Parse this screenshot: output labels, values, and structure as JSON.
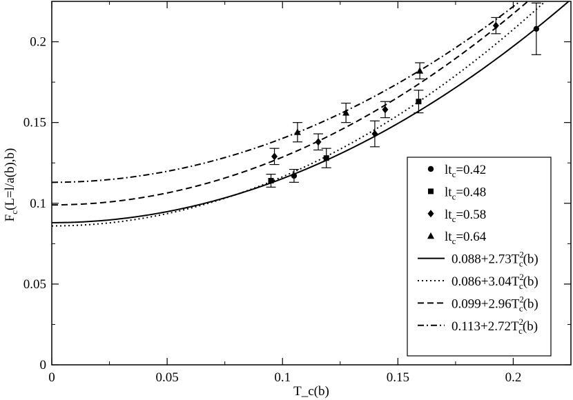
{
  "chart_data": {
    "type": "scatter",
    "xlabel": "T_c(b)",
    "ylabel": {
      "main": "F",
      "sub": "c",
      "rest": "(L=l/a(b),b)"
    },
    "xlim": [
      0,
      0.225
    ],
    "ylim": [
      0,
      0.225
    ],
    "x_ticks": [
      {
        "value": 0,
        "label": "0"
      },
      {
        "value": 0.05,
        "label": "0.05"
      },
      {
        "value": 0.1,
        "label": "0.1"
      },
      {
        "value": 0.15,
        "label": "0.15"
      },
      {
        "value": 0.2,
        "label": "0.2"
      }
    ],
    "y_ticks": [
      {
        "value": 0,
        "label": "0"
      },
      {
        "value": 0.05,
        "label": "0.05"
      },
      {
        "value": 0.1,
        "label": "0.1"
      },
      {
        "value": 0.15,
        "label": "0.15"
      },
      {
        "value": 0.2,
        "label": "0.2"
      }
    ],
    "legend_position": "bottom-right",
    "series": [
      {
        "name": "lt_c=0.42",
        "label_main": "lt",
        "label_sub": "c",
        "label_rest": "=0.42",
        "marker": "circle",
        "points": [
          {
            "x": 0.105,
            "y": 0.117,
            "err": 0.004
          },
          {
            "x": 0.21,
            "y": 0.208,
            "err": 0.016
          }
        ]
      },
      {
        "name": "lt_c=0.48",
        "label_main": "lt",
        "label_sub": "c",
        "label_rest": "=0.48",
        "marker": "square",
        "points": [
          {
            "x": 0.095,
            "y": 0.114,
            "err": 0.004
          },
          {
            "x": 0.119,
            "y": 0.128,
            "err": 0.006
          },
          {
            "x": 0.159,
            "y": 0.163,
            "err": 0.007
          }
        ]
      },
      {
        "name": "lt_c=0.58",
        "label_main": "lt",
        "label_sub": "c",
        "label_rest": "=0.58",
        "marker": "diamond",
        "points": [
          {
            "x": 0.0965,
            "y": 0.129,
            "err": 0.005
          },
          {
            "x": 0.1155,
            "y": 0.138,
            "err": 0.005
          },
          {
            "x": 0.14,
            "y": 0.143,
            "err": 0.008
          },
          {
            "x": 0.1445,
            "y": 0.158,
            "err": 0.005
          },
          {
            "x": 0.1925,
            "y": 0.21,
            "err": 0.005
          }
        ]
      },
      {
        "name": "lt_c=0.64",
        "label_main": "lt",
        "label_sub": "c",
        "label_rest": "=0.64",
        "marker": "triangle",
        "points": [
          {
            "x": 0.1065,
            "y": 0.144,
            "err": 0.006
          },
          {
            "x": 0.1275,
            "y": 0.156,
            "err": 0.006
          },
          {
            "x": 0.1595,
            "y": 0.182,
            "err": 0.005
          }
        ]
      }
    ],
    "fits": [
      {
        "a": 0.088,
        "b": 2.73,
        "dash": "solid",
        "label_pre": "0.088+2.73T",
        "label_sub": "c",
        "label_sup": "2",
        "label_post": "(b)"
      },
      {
        "a": 0.086,
        "b": 3.04,
        "dash": "dotted",
        "label_pre": "0.086+3.04T",
        "label_sub": "c",
        "label_sup": "2",
        "label_post": "(b)"
      },
      {
        "a": 0.099,
        "b": 2.96,
        "dash": "dashed",
        "label_pre": "0.099+2.96T",
        "label_sub": "c",
        "label_sup": "2",
        "label_post": "(b)"
      },
      {
        "a": 0.113,
        "b": 2.72,
        "dash": "dashdot",
        "label_pre": "0.113+2.72T",
        "label_sub": "c",
        "label_sup": "2",
        "label_post": "(b)"
      }
    ]
  }
}
